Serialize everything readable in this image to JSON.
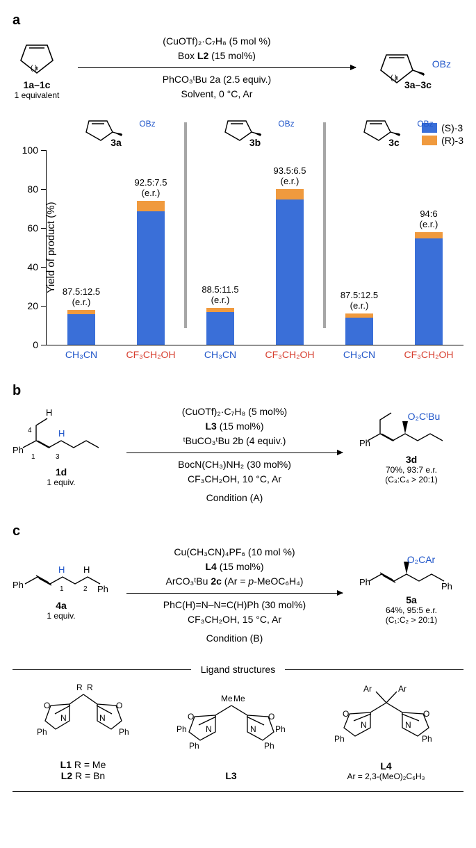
{
  "panel_a": {
    "label": "a",
    "reagent_top": "(CuOTf)₂·C₇H₈ (5 mol %)",
    "reagent_top2": "Box L2 (15 mol%)",
    "reagent_bot": "PhCO₃ᵗBu 2a (2.5 equiv.)",
    "reagent_bot2": "Solvent, 0 °C, Ar",
    "start_label": "1a–1c",
    "start_sub": "1 equivalent",
    "prod_label": "3a–3c",
    "obz": "OBz",
    "chart": {
      "ylabel": "Yield of product (%)",
      "ymax": 100,
      "yticks": [
        0,
        20,
        40,
        60,
        80,
        100
      ],
      "bar_colors": {
        "S": "#3a6fd8",
        "R": "#f09a3e"
      },
      "legend": {
        "S": "(S)-3",
        "R": "(R)-3"
      },
      "groups": [
        {
          "mol_label": "3a",
          "bars": [
            {
              "solvent": "CH₃CN",
              "solvent_color": "blue",
              "total": 18,
              "er": "87.5:12.5",
              "S": 15.75,
              "R": 2.25
            },
            {
              "solvent": "CF₃CH₂OH",
              "solvent_color": "red",
              "total": 74,
              "er": "92.5:7.5",
              "S": 68.45,
              "R": 5.55
            }
          ]
        },
        {
          "mol_label": "3b",
          "bars": [
            {
              "solvent": "CH₃CN",
              "solvent_color": "blue",
              "total": 19,
              "er": "88.5:11.5",
              "S": 16.8,
              "R": 2.2
            },
            {
              "solvent": "CF₃CH₂OH",
              "solvent_color": "red",
              "total": 80,
              "er": "93.5:6.5",
              "S": 74.8,
              "R": 5.2
            }
          ]
        },
        {
          "mol_label": "3c",
          "bars": [
            {
              "solvent": "CH₃CN",
              "solvent_color": "blue",
              "total": 16,
              "er": "87.5:12.5",
              "S": 14.0,
              "R": 2.0
            },
            {
              "solvent": "CF₃CH₂OH",
              "solvent_color": "red",
              "total": 58,
              "er": "94:6",
              "S": 54.5,
              "R": 3.5
            }
          ]
        }
      ]
    }
  },
  "panel_b": {
    "label": "b",
    "start_label": "1d",
    "start_sub": "1 equiv.",
    "reagents": [
      "(CuOTf)₂·C₇H₈ (5 mol%)",
      "L3 (15 mol%)",
      "ᵗBuCO₃ᵗBu 2b (4 equiv.)",
      "BocN(CH₃)NH₂ (30 mol%)",
      "CF₃CH₂OH, 10 °C, Ar",
      "Condition (A)"
    ],
    "prod_label": "3d",
    "prod_group": "O₂CᵗBu",
    "result1": "70%, 93:7 e.r.",
    "result2": "(C₃:C₄ > 20:1)"
  },
  "panel_c": {
    "label": "c",
    "start_label": "4a",
    "start_sub": "1 equiv.",
    "reagents": [
      "Cu(CH₃CN)₄PF₆ (10 mol %)",
      "L4 (15 mol%)",
      "ArCO₃ᵗBu 2c (Ar = p-MeOC₆H₄)",
      "PhC(H)=N–N=C(H)Ph (30 mol%)",
      "CF₃CH₂OH, 15 °C, Ar",
      "Condition (B)"
    ],
    "prod_label": "5a",
    "prod_group": "O₂CAr",
    "result1": "64%, 95:5 e.r.",
    "result2": "(C₁:C₂ > 20:1)"
  },
  "ligands": {
    "title": "Ligand structures",
    "L12": {
      "name1": "L1",
      "r1": "R = Me",
      "name2": "L2",
      "r2": "R = Bn"
    },
    "L3": "L3",
    "L4": {
      "name": "L4",
      "ar": "Ar = 2,3-(MeO)₂C₆H₃"
    }
  }
}
